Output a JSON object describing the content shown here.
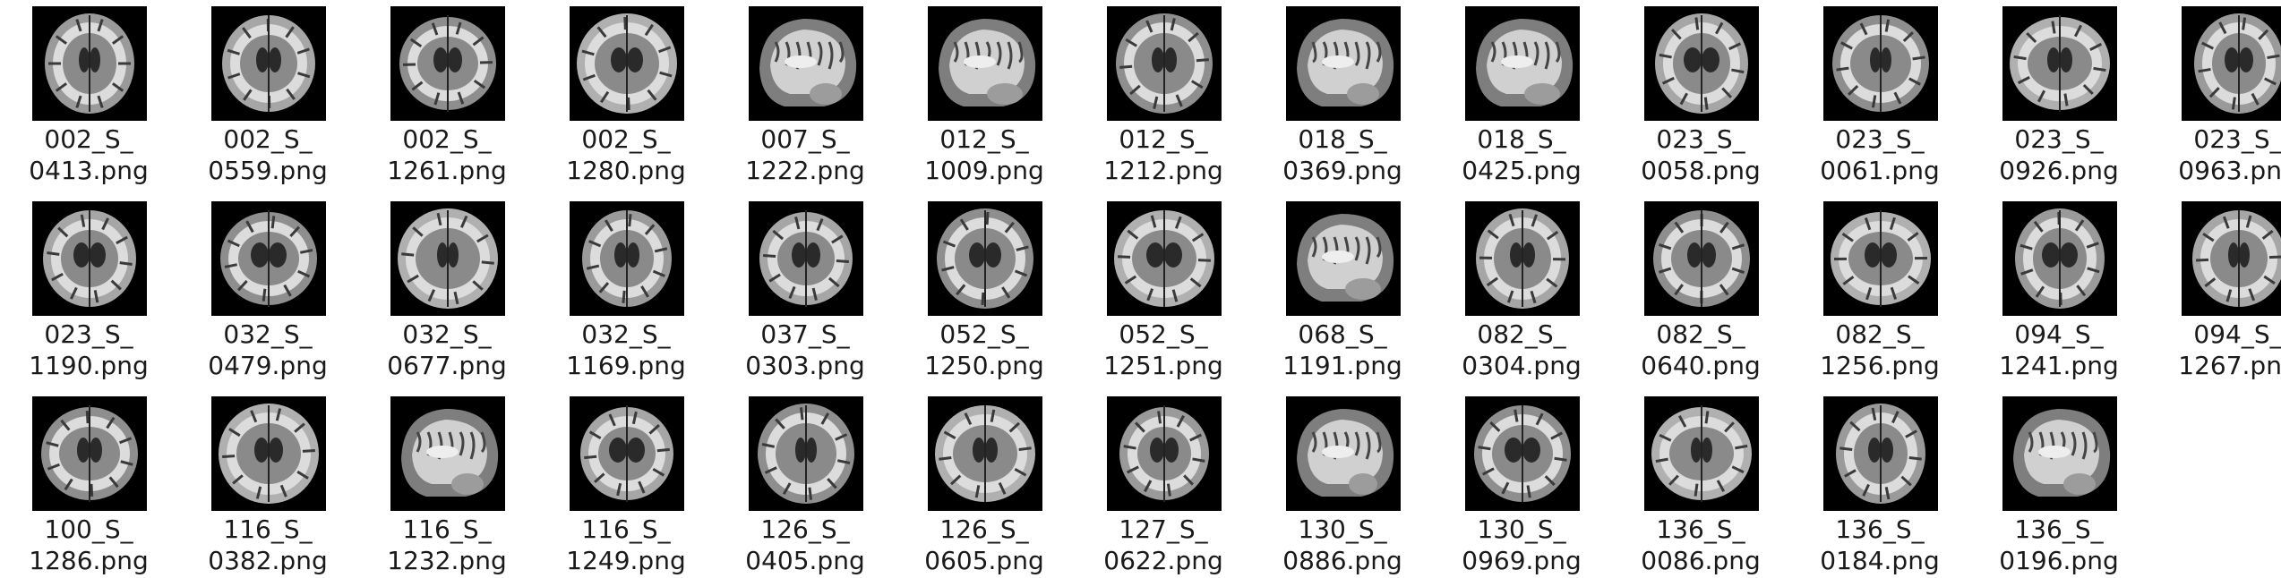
{
  "thumbnail_icon": "brain-mri-slice-icon",
  "files": [
    {
      "line1": "002_S_",
      "line2": "0413.png",
      "view": "axial"
    },
    {
      "line1": "002_S_",
      "line2": "0559.png",
      "view": "axial"
    },
    {
      "line1": "002_S_",
      "line2": "1261.png",
      "view": "axial"
    },
    {
      "line1": "002_S_",
      "line2": "1280.png",
      "view": "axial"
    },
    {
      "line1": "007_S_",
      "line2": "1222.png",
      "view": "sagittal"
    },
    {
      "line1": "012_S_",
      "line2": "1009.png",
      "view": "sagittal"
    },
    {
      "line1": "012_S_",
      "line2": "1212.png",
      "view": "axial"
    },
    {
      "line1": "018_S_",
      "line2": "0369.png",
      "view": "sagittal"
    },
    {
      "line1": "018_S_",
      "line2": "0425.png",
      "view": "sagittal"
    },
    {
      "line1": "023_S_",
      "line2": "0058.png",
      "view": "axial"
    },
    {
      "line1": "023_S_",
      "line2": "0061.png",
      "view": "axial"
    },
    {
      "line1": "023_S_",
      "line2": "0926.png",
      "view": "axial"
    },
    {
      "line1": "023_S_",
      "line2": "0963.png",
      "view": "axial"
    },
    {
      "line1": "023_S_",
      "line2": "1190.png",
      "view": "axial"
    },
    {
      "line1": "032_S_",
      "line2": "0479.png",
      "view": "axial"
    },
    {
      "line1": "032_S_",
      "line2": "0677.png",
      "view": "axial"
    },
    {
      "line1": "032_S_",
      "line2": "1169.png",
      "view": "axial"
    },
    {
      "line1": "037_S_",
      "line2": "0303.png",
      "view": "axial"
    },
    {
      "line1": "052_S_",
      "line2": "1250.png",
      "view": "axial"
    },
    {
      "line1": "052_S_",
      "line2": "1251.png",
      "view": "axial"
    },
    {
      "line1": "068_S_",
      "line2": "1191.png",
      "view": "sagittal"
    },
    {
      "line1": "082_S_",
      "line2": "0304.png",
      "view": "axial"
    },
    {
      "line1": "082_S_",
      "line2": "0640.png",
      "view": "axial"
    },
    {
      "line1": "082_S_",
      "line2": "1256.png",
      "view": "axial"
    },
    {
      "line1": "094_S_",
      "line2": "1241.png",
      "view": "axial"
    },
    {
      "line1": "094_S_",
      "line2": "1267.png",
      "view": "axial"
    },
    {
      "line1": "100_S_",
      "line2": "1286.png",
      "view": "axial"
    },
    {
      "line1": "116_S_",
      "line2": "0382.png",
      "view": "axial"
    },
    {
      "line1": "116_S_",
      "line2": "1232.png",
      "view": "sagittal"
    },
    {
      "line1": "116_S_",
      "line2": "1249.png",
      "view": "axial"
    },
    {
      "line1": "126_S_",
      "line2": "0405.png",
      "view": "axial"
    },
    {
      "line1": "126_S_",
      "line2": "0605.png",
      "view": "axial"
    },
    {
      "line1": "127_S_",
      "line2": "0622.png",
      "view": "axial"
    },
    {
      "line1": "130_S_",
      "line2": "0886.png",
      "view": "sagittal"
    },
    {
      "line1": "130_S_",
      "line2": "0969.png",
      "view": "axial"
    },
    {
      "line1": "136_S_",
      "line2": "0086.png",
      "view": "axial"
    },
    {
      "line1": "136_S_",
      "line2": "0184.png",
      "view": "axial"
    },
    {
      "line1": "136_S_",
      "line2": "0196.png",
      "view": "sagittal"
    }
  ]
}
